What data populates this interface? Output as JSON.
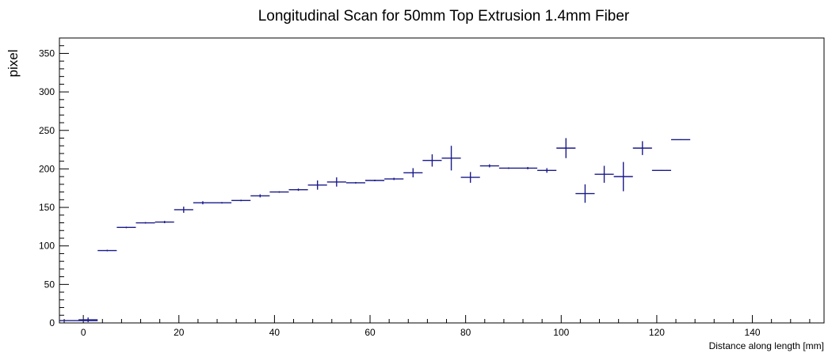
{
  "chart_data": {
    "type": "scatter",
    "title": "Longitudinal Scan for 50mm Top Extrusion 1.4mm Fiber",
    "xlabel": "Distance along length [mm]",
    "ylabel": "pixel",
    "xlim": [
      -5,
      155
    ],
    "ylim": [
      0,
      370
    ],
    "x_ticks": [
      0,
      20,
      40,
      60,
      80,
      100,
      120,
      140
    ],
    "y_ticks": [
      0,
      50,
      100,
      150,
      200,
      250,
      300,
      350
    ],
    "x_tick_labels": [
      "0",
      "20",
      "40",
      "60",
      "80",
      "100",
      "120",
      "140"
    ],
    "y_tick_labels": [
      "0",
      "50",
      "100",
      "150",
      "200",
      "250",
      "300",
      "350"
    ],
    "grid": false,
    "series": [
      {
        "color": "#1a1a8c",
        "points": [
          {
            "x": -1,
            "y": 3,
            "xerr": 4,
            "yerr": 0.5
          },
          {
            "x": 1,
            "y": 4,
            "xerr": 2,
            "yerr": 3
          },
          {
            "x": 5,
            "y": 94,
            "xerr": 2,
            "yerr": 1
          },
          {
            "x": 9,
            "y": 124,
            "xerr": 2,
            "yerr": 1
          },
          {
            "x": 13,
            "y": 130,
            "xerr": 2,
            "yerr": 1
          },
          {
            "x": 17,
            "y": 131,
            "xerr": 2,
            "yerr": 1.5
          },
          {
            "x": 21,
            "y": 147,
            "xerr": 2,
            "yerr": 4
          },
          {
            "x": 25,
            "y": 156,
            "xerr": 2,
            "yerr": 2
          },
          {
            "x": 29,
            "y": 156,
            "xerr": 2,
            "yerr": 1
          },
          {
            "x": 33,
            "y": 159,
            "xerr": 2,
            "yerr": 1
          },
          {
            "x": 37,
            "y": 165,
            "xerr": 2,
            "yerr": 2
          },
          {
            "x": 41,
            "y": 170,
            "xerr": 2,
            "yerr": 1
          },
          {
            "x": 45,
            "y": 173,
            "xerr": 2,
            "yerr": 1.5
          },
          {
            "x": 49,
            "y": 179,
            "xerr": 2,
            "yerr": 6
          },
          {
            "x": 53,
            "y": 183,
            "xerr": 2,
            "yerr": 6
          },
          {
            "x": 57,
            "y": 182,
            "xerr": 2,
            "yerr": 1
          },
          {
            "x": 61,
            "y": 185,
            "xerr": 2,
            "yerr": 1
          },
          {
            "x": 65,
            "y": 187,
            "xerr": 2,
            "yerr": 1.5
          },
          {
            "x": 69,
            "y": 195,
            "xerr": 2,
            "yerr": 6
          },
          {
            "x": 73,
            "y": 211,
            "xerr": 2,
            "yerr": 8
          },
          {
            "x": 77,
            "y": 214,
            "xerr": 2,
            "yerr": 16
          },
          {
            "x": 81,
            "y": 189,
            "xerr": 2,
            "yerr": 7
          },
          {
            "x": 85,
            "y": 204,
            "xerr": 2,
            "yerr": 2
          },
          {
            "x": 89,
            "y": 201,
            "xerr": 2,
            "yerr": 1
          },
          {
            "x": 93,
            "y": 201,
            "xerr": 2,
            "yerr": 1.5
          },
          {
            "x": 97,
            "y": 198,
            "xerr": 2,
            "yerr": 3
          },
          {
            "x": 101,
            "y": 227,
            "xerr": 2,
            "yerr": 13
          },
          {
            "x": 105,
            "y": 168,
            "xerr": 2,
            "yerr": 12
          },
          {
            "x": 109,
            "y": 193,
            "xerr": 2,
            "yerr": 11
          },
          {
            "x": 113,
            "y": 190,
            "xerr": 2,
            "yerr": 19
          },
          {
            "x": 117,
            "y": 227,
            "xerr": 2,
            "yerr": 9
          },
          {
            "x": 121,
            "y": 198,
            "xerr": 2,
            "yerr": 0.5
          },
          {
            "x": 125,
            "y": 238,
            "xerr": 2,
            "yerr": 0.5
          }
        ]
      }
    ]
  }
}
